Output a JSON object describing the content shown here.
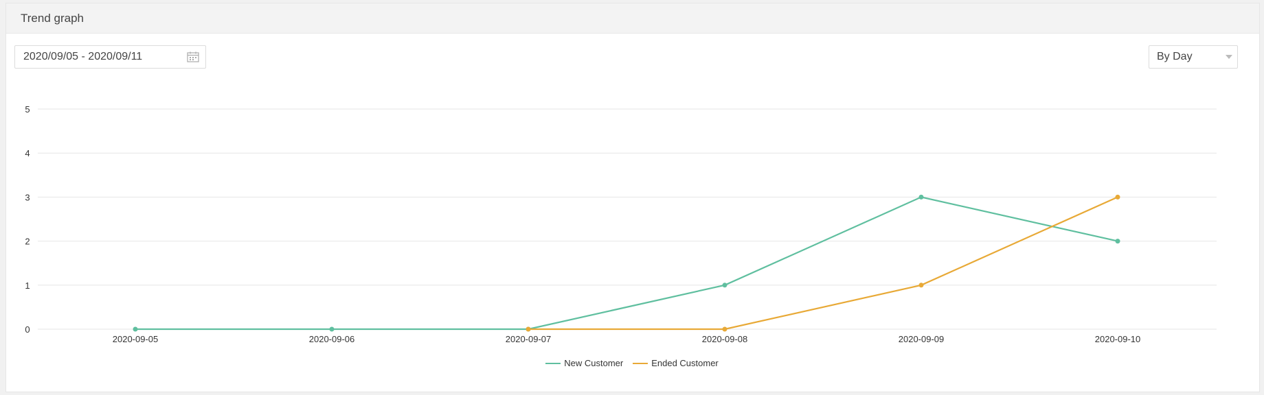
{
  "panel": {
    "title": "Trend graph"
  },
  "controls": {
    "date_range": "2020/09/05 - 2020/09/11",
    "calendar_icon": "calendar-icon",
    "period": "By Day",
    "period_icon": "chevron-down-icon"
  },
  "colors": {
    "new_customer": "#5fbf9f",
    "ended_customer": "#e8a936",
    "grid": "#e6e6e6"
  },
  "chart_data": {
    "type": "line",
    "title": "",
    "xlabel": "",
    "ylabel": "",
    "categories": [
      "2020-09-05",
      "2020-09-06",
      "2020-09-07",
      "2020-09-08",
      "2020-09-09",
      "2020-09-10"
    ],
    "ylim": [
      0,
      5
    ],
    "yticks": [
      "0",
      "1",
      "2",
      "3",
      "4",
      "5"
    ],
    "grid": true,
    "legend_position": "bottom-center",
    "series": [
      {
        "name": "New Customer",
        "color": "#5fbf9f",
        "values": [
          0,
          0,
          0,
          1,
          3,
          2
        ]
      },
      {
        "name": "Ended Customer",
        "color": "#e8a936",
        "values": [
          null,
          null,
          0,
          0,
          1,
          3
        ]
      }
    ]
  }
}
